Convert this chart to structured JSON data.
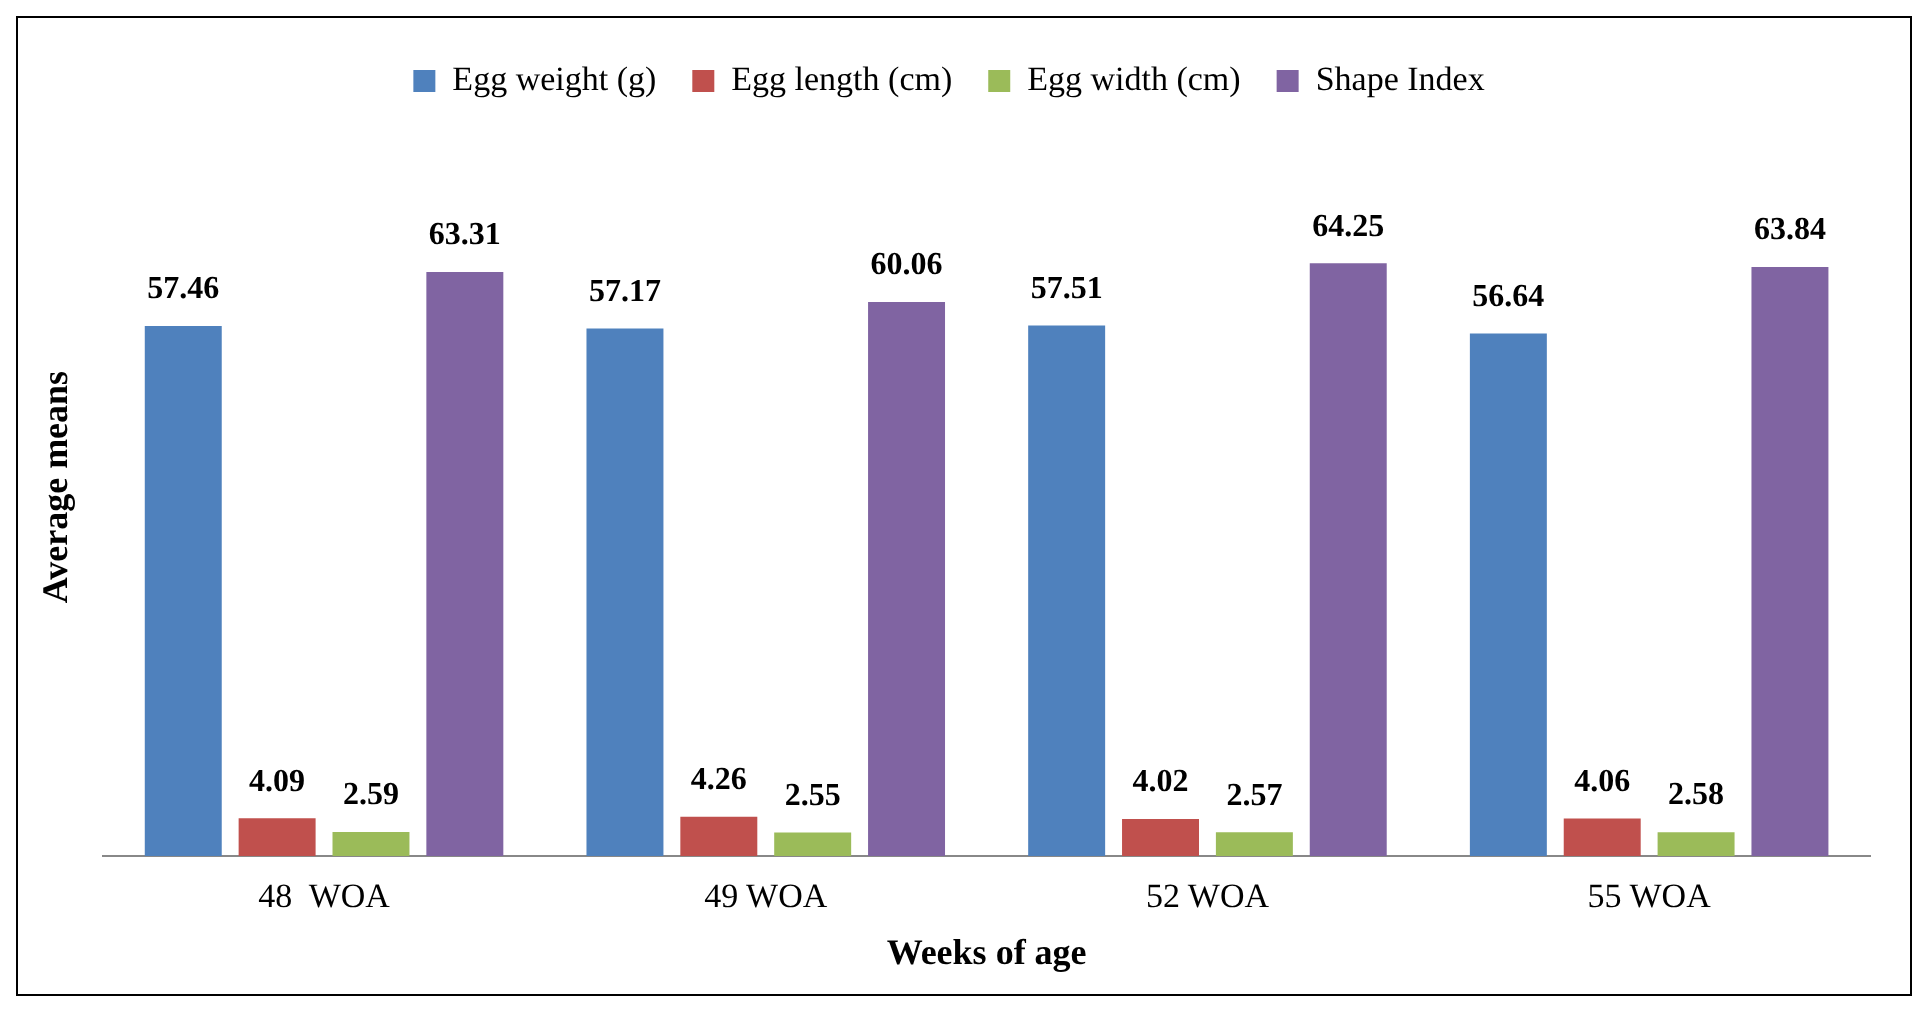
{
  "chart_data": {
    "type": "bar",
    "xlabel": "Weeks of age",
    "ylabel": "Average means",
    "categories": [
      "48  WOA",
      "49 WOA",
      "52 WOA",
      "55 WOA"
    ],
    "series": [
      {
        "name": "Egg weight (g)",
        "color": "#4f81bd",
        "values": [
          57.46,
          57.17,
          57.51,
          56.64
        ]
      },
      {
        "name": "Egg length (cm)",
        "color": "#c0504d",
        "values": [
          4.09,
          4.26,
          4.02,
          4.06
        ]
      },
      {
        "name": "Egg width (cm)",
        "color": "#9bbb59",
        "values": [
          2.59,
          2.55,
          2.57,
          2.58
        ]
      },
      {
        "name": "Shape Index",
        "color": "#8064a2",
        "values": [
          63.31,
          60.06,
          64.25,
          63.84
        ]
      }
    ],
    "data_labels": true,
    "grid": false,
    "legend": "top"
  }
}
